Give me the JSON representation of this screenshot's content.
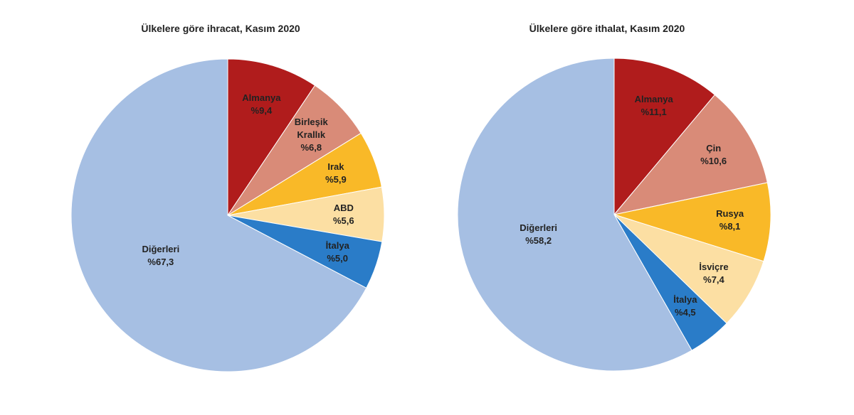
{
  "chart_data": [
    {
      "type": "pie",
      "title": "Ülkelere göre ihracat, Kasım 2020",
      "categories": [
        "Almanya",
        "Birleşik Krallık",
        "Irak",
        "ABD",
        "İtalya",
        "Diğerleri"
      ],
      "values": [
        9.4,
        6.8,
        5.9,
        5.6,
        5.0,
        67.3
      ],
      "value_labels": [
        "%9,4",
        "%6,8",
        "%5,9",
        "%5,6",
        "%5,0",
        "%67,3"
      ],
      "colors": [
        "#b01c1c",
        "#d98b78",
        "#f9b928",
        "#fcdfa3",
        "#2a7cc8",
        "#a6bfe3"
      ]
    },
    {
      "type": "pie",
      "title": "Ülkelere göre ithalat, Kasım 2020",
      "categories": [
        "Almanya",
        "Çin",
        "Rusya",
        "İsviçre",
        "İtalya",
        "Diğerleri"
      ],
      "values": [
        11.1,
        10.6,
        8.1,
        7.4,
        4.5,
        58.2
      ],
      "value_labels": [
        "%11,1",
        "%10,6",
        "%8,1",
        "%7,4",
        "%4,5",
        "%58,2"
      ],
      "colors": [
        "#b01c1c",
        "#d98b78",
        "#f9b928",
        "#fcdfa3",
        "#2a7cc8",
        "#a6bfe3"
      ]
    }
  ]
}
